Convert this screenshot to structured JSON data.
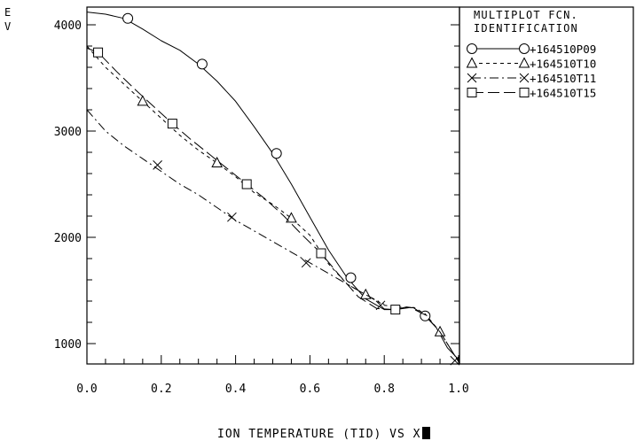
{
  "y_unit_letters": [
    "E",
    "V"
  ],
  "legend": {
    "title_lines": [
      "MULTIPLOT FCN.",
      "IDENTIFICATION"
    ]
  },
  "xlabel": "ION TEMPERATURE (TID) VS X",
  "chart_data": {
    "type": "line",
    "title": "",
    "xlabel": "ION TEMPERATURE (TID) VS X",
    "ylabel": "EV",
    "xlim": [
      0.0,
      1.0
    ],
    "ylim": [
      800,
      4200
    ],
    "x_ticks": [
      "0.0",
      "0.2",
      "0.4",
      "0.6",
      "0.8",
      "1.0"
    ],
    "y_ticks": [
      "1000",
      "2000",
      "3000",
      "4000"
    ],
    "grid": false,
    "legend_position": "right",
    "series": [
      {
        "name": "+164510P09",
        "marker": "circle",
        "dash": "solid",
        "x": [
          0.0,
          0.05,
          0.1,
          0.15,
          0.2,
          0.25,
          0.3,
          0.35,
          0.4,
          0.45,
          0.5,
          0.55,
          0.6,
          0.65,
          0.7,
          0.75,
          0.8,
          0.83,
          0.86,
          0.88,
          0.91,
          0.94,
          0.97,
          1.0
        ],
        "y": [
          4120,
          4100,
          4060,
          3960,
          3850,
          3760,
          3630,
          3470,
          3280,
          3040,
          2790,
          2500,
          2190,
          1880,
          1620,
          1420,
          1320,
          1320,
          1345,
          1335,
          1260,
          1150,
          960,
          850
        ],
        "marker_x": [
          0.11,
          0.31,
          0.51,
          0.71,
          0.91
        ],
        "marker_y": [
          4060,
          3630,
          2790,
          1620,
          1260
        ]
      },
      {
        "name": "+164510T10",
        "marker": "triangle",
        "dash": "short-dash",
        "x": [
          0.0,
          0.05,
          0.1,
          0.15,
          0.2,
          0.25,
          0.3,
          0.35,
          0.4,
          0.45,
          0.5,
          0.55,
          0.6,
          0.65,
          0.7,
          0.75,
          0.8,
          0.85,
          0.88,
          0.91,
          0.95,
          1.0
        ],
        "y": [
          3800,
          3600,
          3440,
          3280,
          3120,
          2960,
          2820,
          2700,
          2570,
          2420,
          2310,
          2180,
          2020,
          1750,
          1560,
          1460,
          1360,
          1340,
          1340,
          1280,
          1110,
          830
        ],
        "marker_x": [
          0.15,
          0.35,
          0.55,
          0.75,
          0.95
        ],
        "marker_y": [
          3280,
          2700,
          2180,
          1460,
          1110
        ]
      },
      {
        "name": "+164510T11",
        "marker": "x",
        "dash": "dash-dot",
        "x": [
          0.0,
          0.05,
          0.1,
          0.15,
          0.2,
          0.25,
          0.3,
          0.35,
          0.4,
          0.45,
          0.5,
          0.55,
          0.6,
          0.65,
          0.7,
          0.75,
          0.8
        ],
        "y": [
          3200,
          3000,
          2860,
          2740,
          2620,
          2500,
          2400,
          2280,
          2160,
          2060,
          1960,
          1860,
          1760,
          1660,
          1560,
          1460,
          1370
        ],
        "marker_x": [
          0.19,
          0.39,
          0.59,
          0.79,
          0.99
        ],
        "marker_y": [
          2680,
          2190,
          1760,
          1360,
          840
        ]
      },
      {
        "name": "+164510T15",
        "marker": "square",
        "dash": "long-dash",
        "x": [
          0.0,
          0.03,
          0.08,
          0.13,
          0.18,
          0.23,
          0.28,
          0.33,
          0.38,
          0.43,
          0.48,
          0.53,
          0.58,
          0.63,
          0.68,
          0.73,
          0.78,
          0.83,
          0.87,
          0.91,
          0.95,
          1.0
        ],
        "y": [
          3780,
          3740,
          3560,
          3390,
          3230,
          3070,
          2920,
          2780,
          2640,
          2500,
          2360,
          2200,
          2020,
          1850,
          1640,
          1440,
          1330,
          1320,
          1340,
          1270,
          1110,
          830
        ],
        "marker_x": [
          0.03,
          0.23,
          0.43,
          0.63,
          0.83
        ],
        "marker_y": [
          3740,
          3070,
          2500,
          1850,
          1320
        ]
      }
    ]
  }
}
